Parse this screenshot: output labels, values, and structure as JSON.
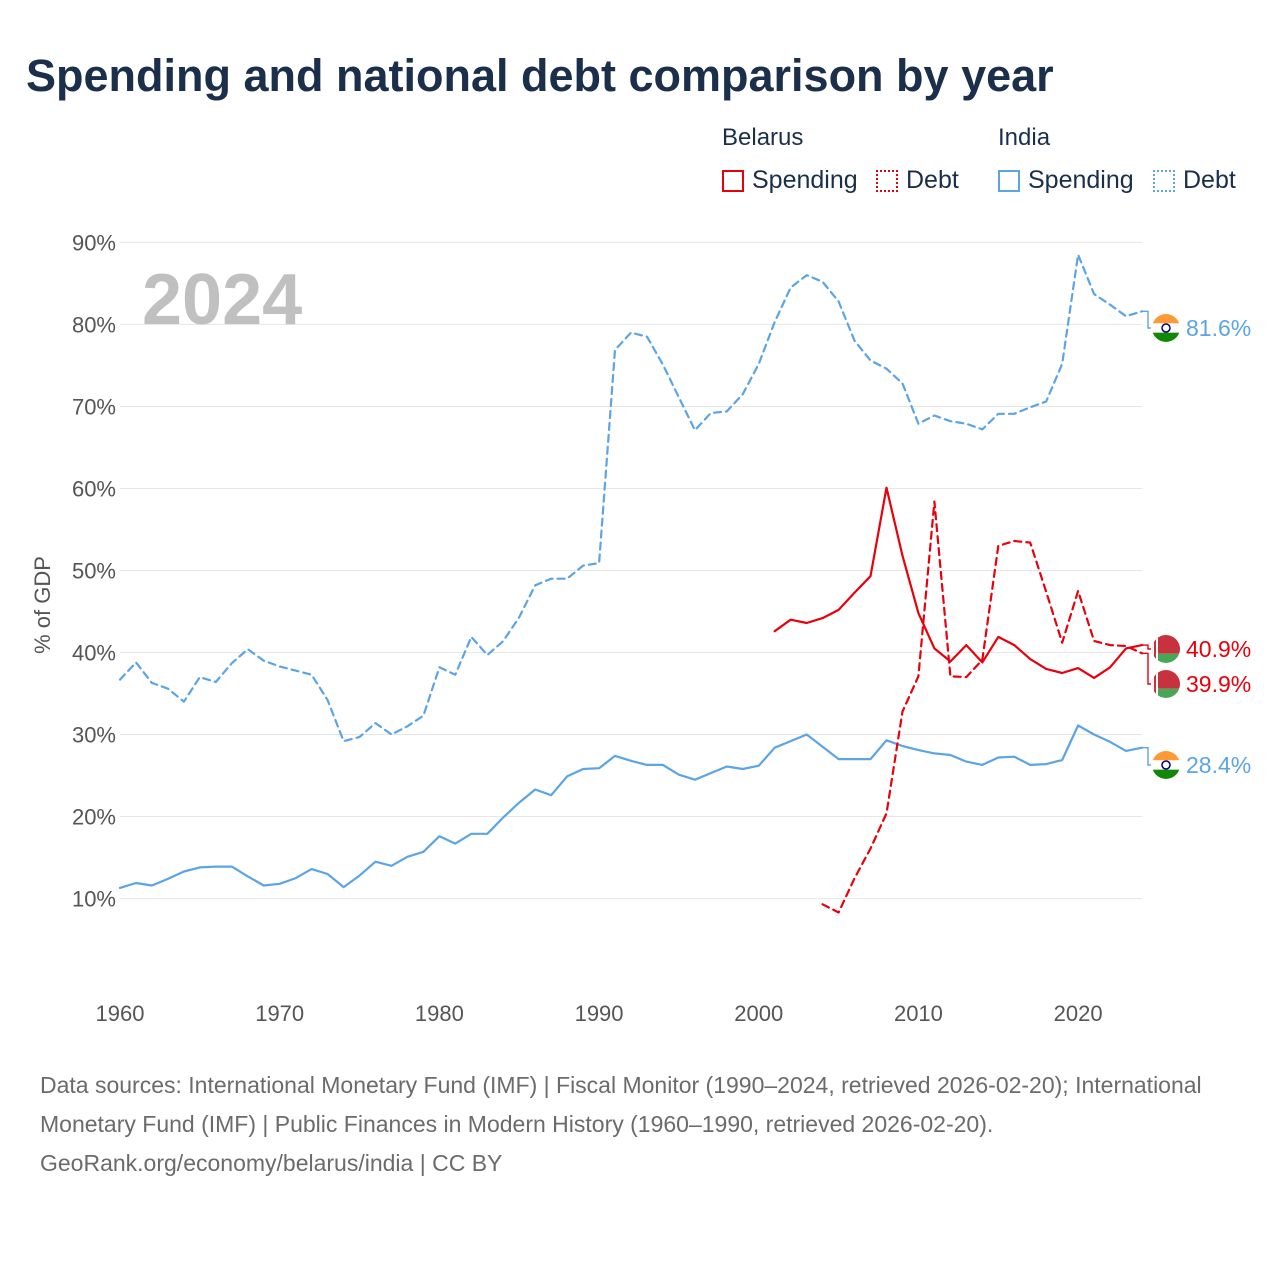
{
  "title": "Spending and national debt comparison by year",
  "legend": {
    "belarus_label": "Belarus",
    "india_label": "India",
    "spending_label": "Spending",
    "debt_label": "Debt"
  },
  "colors": {
    "belarus": "#e8000b",
    "india": "#5ba4e6",
    "grid": "#e6e6e6"
  },
  "footer": {
    "sources": "Data sources: International Monetary Fund (IMF) | Fiscal Monitor (1990–2024, retrieved 2026-02-20); International Monetary Fund (IMF) | Public Finances in Modern History (1960–1990, retrieved 2026-02-20).",
    "credit": "GeoRank.org/economy/belarus/india | CC BY"
  },
  "chart_data": {
    "type": "line",
    "title": "Spending and national debt comparison by year",
    "ylabel": "% of GDP",
    "xlabel": "",
    "year_watermark": "2024",
    "xlim": [
      1960,
      2024
    ],
    "ylim": [
      3,
      92
    ],
    "xticks": [
      1960,
      1970,
      1980,
      1990,
      2000,
      2010,
      2020
    ],
    "xtick_labels": [
      "1960",
      "1970",
      "1980",
      "1990",
      "2000",
      "2010",
      "2020"
    ],
    "yticks": [
      10,
      20,
      30,
      40,
      50,
      60,
      70,
      80,
      90
    ],
    "ytick_labels": [
      "10%",
      "20%",
      "30%",
      "40%",
      "50%",
      "60%",
      "70%",
      "80%",
      "90%"
    ],
    "grid": true,
    "series": [
      {
        "name": "India Debt",
        "country": "India",
        "metric": "Debt",
        "style": "dashed",
        "color": "#5ba4e6",
        "end_label": "81.6%",
        "x": [
          1960,
          1961,
          1962,
          1963,
          1964,
          1965,
          1966,
          1967,
          1968,
          1969,
          1970,
          1971,
          1972,
          1973,
          1974,
          1975,
          1976,
          1977,
          1978,
          1979,
          1980,
          1981,
          1982,
          1983,
          1984,
          1985,
          1986,
          1987,
          1988,
          1989,
          1990,
          1991,
          1992,
          1993,
          1994,
          1995,
          1996,
          1997,
          1998,
          1999,
          2000,
          2001,
          2002,
          2003,
          2004,
          2005,
          2006,
          2007,
          2008,
          2009,
          2010,
          2011,
          2012,
          2013,
          2014,
          2015,
          2016,
          2017,
          2018,
          2019,
          2020,
          2021,
          2022,
          2023,
          2024
        ],
        "values": [
          36.7,
          38.8,
          36.3,
          35.6,
          34.0,
          37.0,
          36.4,
          38.7,
          40.4,
          39.0,
          38.3,
          37.8,
          37.3,
          34.2,
          29.2,
          29.7,
          31.4,
          30.0,
          31.0,
          32.3,
          38.2,
          37.3,
          41.9,
          39.7,
          41.4,
          44.3,
          48.2,
          49.0,
          49.0,
          50.6,
          50.9,
          76.9,
          79.0,
          78.5,
          75.1,
          71.1,
          67.1,
          69.2,
          69.4,
          71.5,
          75.2,
          80.3,
          84.5,
          86.0,
          85.2,
          82.8,
          78.0,
          75.6,
          74.6,
          72.8,
          67.9,
          68.9,
          68.2,
          67.9,
          67.2,
          69.1,
          69.1,
          69.9,
          70.6,
          75.2,
          88.5,
          83.7,
          82.4,
          81.0,
          81.6
        ]
      },
      {
        "name": "India Spending",
        "country": "India",
        "metric": "Spending",
        "style": "solid",
        "color": "#5ba4e6",
        "end_label": "28.4%",
        "x": [
          1960,
          1961,
          1962,
          1963,
          1964,
          1965,
          1966,
          1967,
          1968,
          1969,
          1970,
          1971,
          1972,
          1973,
          1974,
          1975,
          1976,
          1977,
          1978,
          1979,
          1980,
          1981,
          1982,
          1983,
          1984,
          1985,
          1986,
          1987,
          1988,
          1989,
          1990,
          1991,
          1992,
          1993,
          1994,
          1995,
          1996,
          1997,
          1998,
          1999,
          2000,
          2001,
          2002,
          2003,
          2004,
          2005,
          2006,
          2007,
          2008,
          2009,
          2010,
          2011,
          2012,
          2013,
          2014,
          2015,
          2016,
          2017,
          2018,
          2019,
          2020,
          2021,
          2022,
          2023,
          2024
        ],
        "values": [
          11.3,
          11.9,
          11.6,
          12.4,
          13.3,
          13.8,
          13.9,
          13.9,
          12.7,
          11.6,
          11.8,
          12.5,
          13.6,
          13.0,
          11.4,
          12.8,
          14.5,
          14.0,
          15.1,
          15.7,
          17.6,
          16.7,
          17.9,
          17.9,
          19.9,
          21.7,
          23.3,
          22.6,
          24.9,
          25.8,
          25.9,
          27.4,
          26.8,
          26.3,
          26.3,
          25.1,
          24.5,
          25.3,
          26.1,
          25.8,
          26.2,
          28.4,
          29.2,
          30.0,
          28.5,
          27.0,
          27.0,
          27.0,
          29.3,
          28.6,
          28.1,
          27.7,
          27.5,
          26.7,
          26.3,
          27.2,
          27.3,
          26.3,
          26.4,
          26.9,
          31.1,
          30.0,
          29.1,
          28.0,
          28.4
        ]
      },
      {
        "name": "Belarus Spending",
        "country": "Belarus",
        "metric": "Spending",
        "style": "solid",
        "color": "#e8000b",
        "end_label": "40.9%",
        "x": [
          2001,
          2002,
          2003,
          2004,
          2005,
          2006,
          2007,
          2008,
          2009,
          2010,
          2011,
          2012,
          2013,
          2014,
          2015,
          2016,
          2017,
          2018,
          2019,
          2020,
          2021,
          2022,
          2023,
          2024
        ],
        "values": [
          42.6,
          44.0,
          43.6,
          44.2,
          45.2,
          47.3,
          49.3,
          60.1,
          51.8,
          44.8,
          40.5,
          38.9,
          40.9,
          38.8,
          41.9,
          40.9,
          39.2,
          38.0,
          37.5,
          38.1,
          36.9,
          38.2,
          40.5,
          40.9
        ]
      },
      {
        "name": "Belarus Debt",
        "country": "Belarus",
        "metric": "Debt",
        "style": "dashed",
        "color": "#e8000b",
        "end_label": "39.9%",
        "x": [
          2004,
          2005,
          2006,
          2007,
          2008,
          2009,
          2010,
          2011,
          2012,
          2013,
          2014,
          2015,
          2016,
          2017,
          2018,
          2019,
          2020,
          2021,
          2022,
          2023,
          2024
        ],
        "values": [
          9.3,
          8.3,
          12.5,
          16.1,
          20.4,
          32.8,
          37.1,
          58.4,
          37.1,
          37.0,
          39.1,
          53.0,
          53.6,
          53.4,
          47.4,
          41.2,
          47.5,
          41.4,
          40.9,
          40.8,
          39.9
        ]
      }
    ]
  }
}
